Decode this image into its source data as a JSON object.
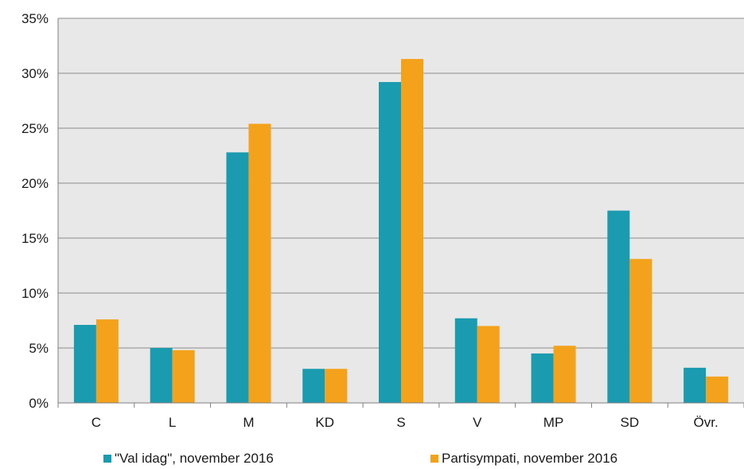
{
  "chart_data": {
    "type": "bar",
    "categories": [
      "C",
      "L",
      "M",
      "KD",
      "S",
      "V",
      "MP",
      "SD",
      "Övr."
    ],
    "series": [
      {
        "name": "\"Val idag\", november 2016",
        "color": "#1a9bb0",
        "values": [
          7.1,
          5.0,
          22.8,
          3.1,
          29.2,
          7.7,
          4.5,
          17.5,
          3.2
        ]
      },
      {
        "name": "Partisympati, november 2016",
        "color": "#f4a21c",
        "values": [
          7.6,
          4.8,
          25.4,
          3.1,
          31.3,
          7.0,
          5.2,
          13.1,
          2.4
        ]
      }
    ],
    "y_ticks": [
      "0%",
      "5%",
      "10%",
      "15%",
      "20%",
      "25%",
      "30%",
      "35%"
    ],
    "ylim": [
      0,
      35
    ],
    "grid": true,
    "legend_position": "bottom",
    "plot_background": "#e8e8e8",
    "title": "",
    "xlabel": "",
    "ylabel": ""
  }
}
